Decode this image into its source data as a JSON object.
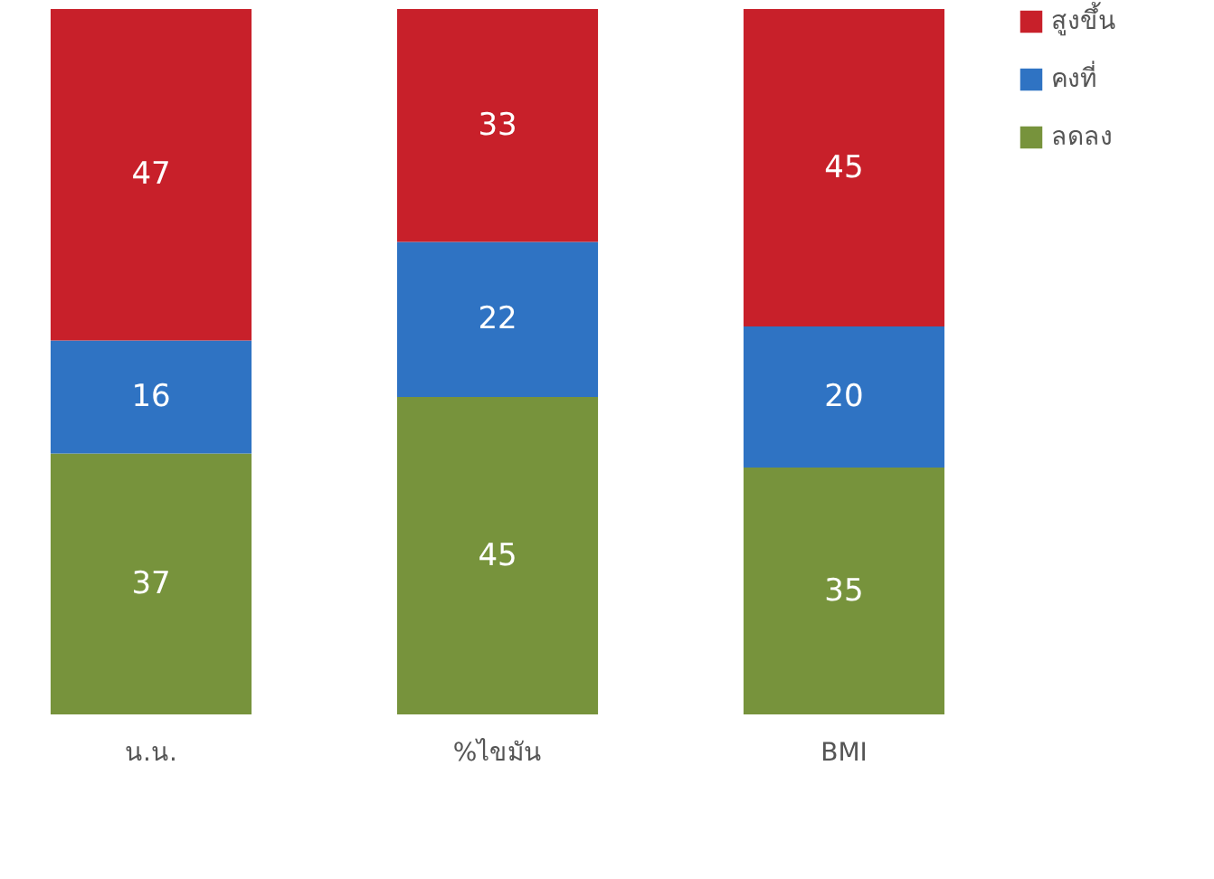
{
  "chart_data": {
    "type": "bar",
    "stacked": true,
    "data_labels": true,
    "legend": "right",
    "categories": [
      "น.น.",
      "%ไขมัน",
      "BMI"
    ],
    "series": [
      {
        "name": "ลดลง",
        "color": "#77933c",
        "values": [
          37,
          45,
          35
        ]
      },
      {
        "name": "คงที่",
        "color": "#2f73c3",
        "values": [
          16,
          22,
          20
        ]
      },
      {
        "name": "สูงขึ้น",
        "color": "#c8202a",
        "values": [
          47,
          33,
          45
        ]
      }
    ]
  }
}
